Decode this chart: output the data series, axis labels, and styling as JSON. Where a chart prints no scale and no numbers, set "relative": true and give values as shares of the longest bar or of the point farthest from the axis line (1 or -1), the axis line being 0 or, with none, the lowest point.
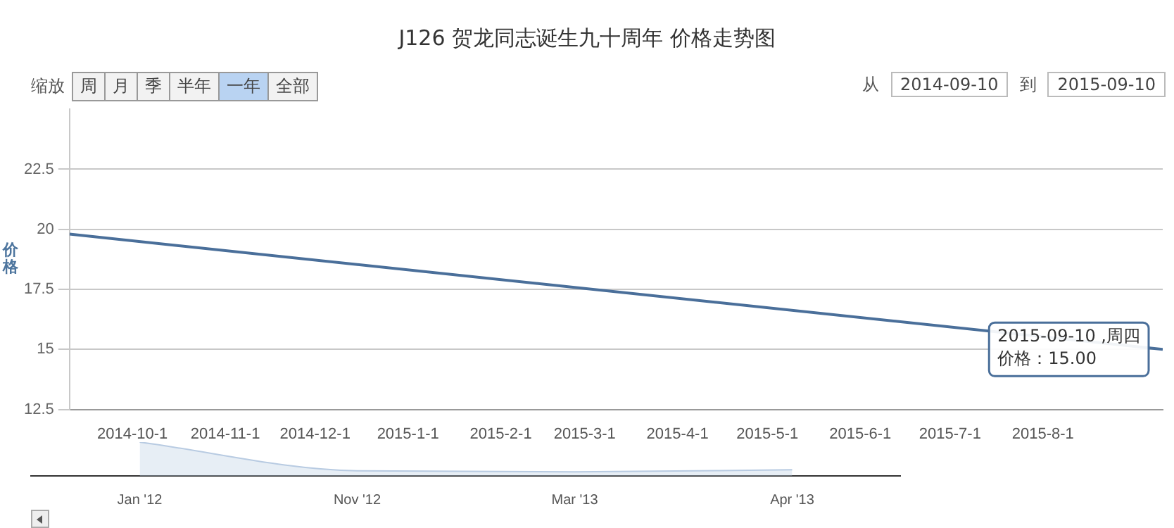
{
  "chart_data": [
    {
      "type": "line",
      "title": "J126 贺龙同志诞生九十周年 价格走势图",
      "ylabel": "价格",
      "x": [
        "2014-09-10",
        "2015-09-10"
      ],
      "values": [
        19.8,
        15
      ],
      "color": "#4a6f9a",
      "xlim": [
        "2014-09-10",
        "2015-09-10"
      ],
      "xticks": [
        {
          "value": "2014-10-01",
          "label": "2014-10-1"
        },
        {
          "value": "2014-11-01",
          "label": "2014-11-1"
        },
        {
          "value": "2014-12-01",
          "label": "2014-12-1"
        },
        {
          "value": "2015-01-01",
          "label": "2015-1-1"
        },
        {
          "value": "2015-02-01",
          "label": "2015-2-1"
        },
        {
          "value": "2015-03-01",
          "label": "2015-3-1"
        },
        {
          "value": "2015-04-01",
          "label": "2015-4-1"
        },
        {
          "value": "2015-05-01",
          "label": "2015-5-1"
        },
        {
          "value": "2015-06-01",
          "label": "2015-6-1"
        },
        {
          "value": "2015-07-01",
          "label": "2015-7-1"
        },
        {
          "value": "2015-08-01",
          "label": "2015-8-1"
        }
      ],
      "ylim": [
        12.5,
        25
      ],
      "yticks": [
        12.5,
        15,
        17.5,
        20,
        22.5
      ],
      "grid": "y",
      "legend": false,
      "marker": "none",
      "annotations": [
        "缩放",
        "周",
        "月",
        "季",
        "半年",
        "一年",
        "全部",
        "从",
        "2014-09-10",
        "到",
        "2015-09-10",
        {
          "text": "2015-09-10 ,周四",
          "x": "2015-09-10",
          "y": 15
        },
        "价格：15.00"
      ]
    },
    {
      "type": "area",
      "relative": true,
      "categories": [
        "Jan '12",
        "Nov '12",
        "Mar '13",
        "Apr '13"
      ],
      "values": [
        1,
        0.15,
        0.12,
        0.18
      ],
      "color": "#b8cbe2"
    }
  ]
}
